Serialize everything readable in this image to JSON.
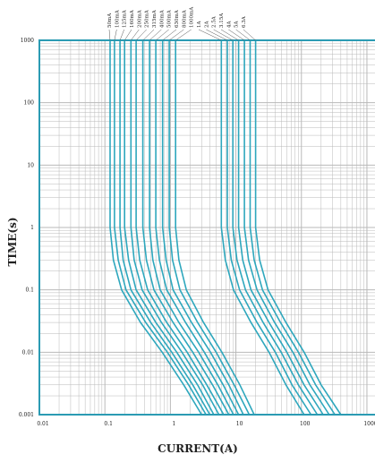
{
  "chart_data": {
    "type": "line",
    "title": "",
    "xlabel": "CURRENT(A)",
    "ylabel": "TIME(s)",
    "x_scale": "log",
    "y_scale": "log",
    "xlim": [
      0.01,
      2000
    ],
    "ylim": [
      0.001,
      1000
    ],
    "grid": true,
    "legend": "rating labels along the top edge",
    "colors": {
      "curve": "#2ea7bd",
      "frame": "#2b9bb3",
      "grid": "#b9b9b9",
      "text": "#222222"
    },
    "x_ticks": [
      {
        "value": 0.01,
        "label": "0.01"
      },
      {
        "value": 0.1,
        "label": "0.1"
      },
      {
        "value": 1,
        "label": "1"
      },
      {
        "value": 10,
        "label": "10"
      },
      {
        "value": 100,
        "label": "100"
      },
      {
        "value": 1000,
        "label": "1000"
      }
    ],
    "y_ticks": [
      {
        "value": 1000,
        "label": "1000"
      },
      {
        "value": 100,
        "label": "100"
      },
      {
        "value": 10,
        "label": "10"
      },
      {
        "value": 1,
        "label": "1"
      },
      {
        "value": 0.1,
        "label": "0.1"
      },
      {
        "value": 0.01,
        "label": "0.01"
      },
      {
        "value": 0.001,
        "label": "0.001"
      }
    ],
    "series": [
      {
        "name": "50mA",
        "points": [
          [
            0.12,
            1000
          ],
          [
            0.12,
            10
          ],
          [
            0.12,
            1
          ],
          [
            0.135,
            0.3
          ],
          [
            0.18,
            0.1
          ],
          [
            0.35,
            0.03
          ],
          [
            0.75,
            0.01
          ],
          [
            1.6,
            0.003
          ],
          [
            3.0,
            0.001
          ]
        ]
      },
      {
        "name": "100mA",
        "points": [
          [
            0.14,
            1000
          ],
          [
            0.14,
            10
          ],
          [
            0.14,
            1
          ],
          [
            0.16,
            0.3
          ],
          [
            0.21,
            0.1
          ],
          [
            0.42,
            0.03
          ],
          [
            0.9,
            0.01
          ],
          [
            1.9,
            0.003
          ],
          [
            3.5,
            0.001
          ]
        ]
      },
      {
        "name": "125mA",
        "points": [
          [
            0.17,
            1000
          ],
          [
            0.17,
            10
          ],
          [
            0.17,
            1
          ],
          [
            0.19,
            0.3
          ],
          [
            0.25,
            0.1
          ],
          [
            0.5,
            0.03
          ],
          [
            1.05,
            0.01
          ],
          [
            2.2,
            0.003
          ],
          [
            4.0,
            0.001
          ]
        ]
      },
      {
        "name": "160mA",
        "points": [
          [
            0.2,
            1000
          ],
          [
            0.2,
            10
          ],
          [
            0.2,
            1
          ],
          [
            0.23,
            0.3
          ],
          [
            0.3,
            0.1
          ],
          [
            0.6,
            0.03
          ],
          [
            1.25,
            0.01
          ],
          [
            2.6,
            0.003
          ],
          [
            4.6,
            0.001
          ]
        ]
      },
      {
        "name": "200mA",
        "points": [
          [
            0.25,
            1000
          ],
          [
            0.25,
            10
          ],
          [
            0.25,
            1
          ],
          [
            0.28,
            0.3
          ],
          [
            0.37,
            0.1
          ],
          [
            0.73,
            0.03
          ],
          [
            1.5,
            0.01
          ],
          [
            3.1,
            0.003
          ],
          [
            5.5,
            0.001
          ]
        ]
      },
      {
        "name": "250mA",
        "points": [
          [
            0.3,
            1000
          ],
          [
            0.3,
            10
          ],
          [
            0.3,
            1
          ],
          [
            0.34,
            0.3
          ],
          [
            0.45,
            0.1
          ],
          [
            0.88,
            0.03
          ],
          [
            1.8,
            0.01
          ],
          [
            3.6,
            0.003
          ],
          [
            6.5,
            0.001
          ]
        ]
      },
      {
        "name": "315mA",
        "points": [
          [
            0.38,
            1000
          ],
          [
            0.38,
            10
          ],
          [
            0.38,
            1
          ],
          [
            0.43,
            0.3
          ],
          [
            0.56,
            0.1
          ],
          [
            1.1,
            0.03
          ],
          [
            2.2,
            0.01
          ],
          [
            4.4,
            0.003
          ],
          [
            7.8,
            0.001
          ]
        ]
      },
      {
        "name": "400mA",
        "points": [
          [
            0.48,
            1000
          ],
          [
            0.48,
            10
          ],
          [
            0.48,
            1
          ],
          [
            0.54,
            0.3
          ],
          [
            0.7,
            0.1
          ],
          [
            1.35,
            0.03
          ],
          [
            2.7,
            0.01
          ],
          [
            5.3,
            0.003
          ],
          [
            9.2,
            0.001
          ]
        ]
      },
      {
        "name": "500mA",
        "points": [
          [
            0.6,
            1000
          ],
          [
            0.6,
            10
          ],
          [
            0.6,
            1
          ],
          [
            0.68,
            0.3
          ],
          [
            0.88,
            0.1
          ],
          [
            1.7,
            0.03
          ],
          [
            3.3,
            0.01
          ],
          [
            6.4,
            0.003
          ],
          [
            11,
            0.001
          ]
        ]
      },
      {
        "name": "630mA",
        "points": [
          [
            0.76,
            1000
          ],
          [
            0.76,
            10
          ],
          [
            0.76,
            1
          ],
          [
            0.86,
            0.3
          ],
          [
            1.1,
            0.1
          ],
          [
            2.1,
            0.03
          ],
          [
            4.1,
            0.01
          ],
          [
            7.8,
            0.003
          ],
          [
            13,
            0.001
          ]
        ]
      },
      {
        "name": "800mA",
        "points": [
          [
            0.96,
            1000
          ],
          [
            0.96,
            10
          ],
          [
            0.96,
            1
          ],
          [
            1.08,
            0.3
          ],
          [
            1.4,
            0.1
          ],
          [
            2.6,
            0.03
          ],
          [
            5.0,
            0.01
          ],
          [
            9.4,
            0.003
          ],
          [
            16,
            0.001
          ]
        ]
      },
      {
        "name": "1000mA",
        "points": [
          [
            1.2,
            1000
          ],
          [
            1.2,
            10
          ],
          [
            1.2,
            1
          ],
          [
            1.35,
            0.3
          ],
          [
            1.75,
            0.1
          ],
          [
            3.2,
            0.03
          ],
          [
            6.1,
            0.01
          ],
          [
            11.5,
            0.003
          ],
          [
            19,
            0.001
          ]
        ]
      },
      {
        "name": "1A",
        "points": [
          [
            6.0,
            1000
          ],
          [
            6.0,
            10
          ],
          [
            6.0,
            1
          ],
          [
            6.9,
            0.3
          ],
          [
            9.2,
            0.1
          ],
          [
            17,
            0.03
          ],
          [
            32,
            0.01
          ],
          [
            58,
            0.003
          ],
          [
            110,
            0.001
          ]
        ]
      },
      {
        "name": "2A",
        "points": [
          [
            7.4,
            1000
          ],
          [
            7.4,
            10
          ],
          [
            7.4,
            1
          ],
          [
            8.5,
            0.3
          ],
          [
            11.4,
            0.1
          ],
          [
            21,
            0.03
          ],
          [
            40,
            0.01
          ],
          [
            72,
            0.003
          ],
          [
            140,
            0.001
          ]
        ]
      },
      {
        "name": "2.5A",
        "points": [
          [
            9.0,
            1000
          ],
          [
            9.0,
            10
          ],
          [
            9.0,
            1
          ],
          [
            10.4,
            0.3
          ],
          [
            14,
            0.1
          ],
          [
            26,
            0.03
          ],
          [
            49,
            0.01
          ],
          [
            90,
            0.003
          ],
          [
            175,
            0.001
          ]
        ]
      },
      {
        "name": "3.15A",
        "points": [
          [
            11,
            1000
          ],
          [
            11,
            10
          ],
          [
            11,
            1
          ],
          [
            12.7,
            0.3
          ],
          [
            17,
            0.1
          ],
          [
            32,
            0.03
          ],
          [
            60,
            0.01
          ],
          [
            110,
            0.003
          ],
          [
            215,
            0.001
          ]
        ]
      },
      {
        "name": "4A",
        "points": [
          [
            13.5,
            1000
          ],
          [
            13.5,
            10
          ],
          [
            13.5,
            1
          ],
          [
            15.6,
            0.3
          ],
          [
            21,
            0.1
          ],
          [
            39,
            0.03
          ],
          [
            74,
            0.01
          ],
          [
            135,
            0.003
          ],
          [
            265,
            0.001
          ]
        ]
      },
      {
        "name": "5A",
        "points": [
          [
            16.5,
            1000
          ],
          [
            16.5,
            10
          ],
          [
            16.5,
            1
          ],
          [
            19,
            0.3
          ],
          [
            25.5,
            0.1
          ],
          [
            48,
            0.03
          ],
          [
            90,
            0.01
          ],
          [
            165,
            0.003
          ],
          [
            325,
            0.001
          ]
        ]
      },
      {
        "name": "6.3A",
        "points": [
          [
            20,
            1000
          ],
          [
            20,
            10
          ],
          [
            20,
            1
          ],
          [
            23,
            0.3
          ],
          [
            31,
            0.1
          ],
          [
            58,
            0.03
          ],
          [
            110,
            0.01
          ],
          [
            200,
            0.003
          ],
          [
            400,
            0.001
          ]
        ]
      }
    ]
  }
}
